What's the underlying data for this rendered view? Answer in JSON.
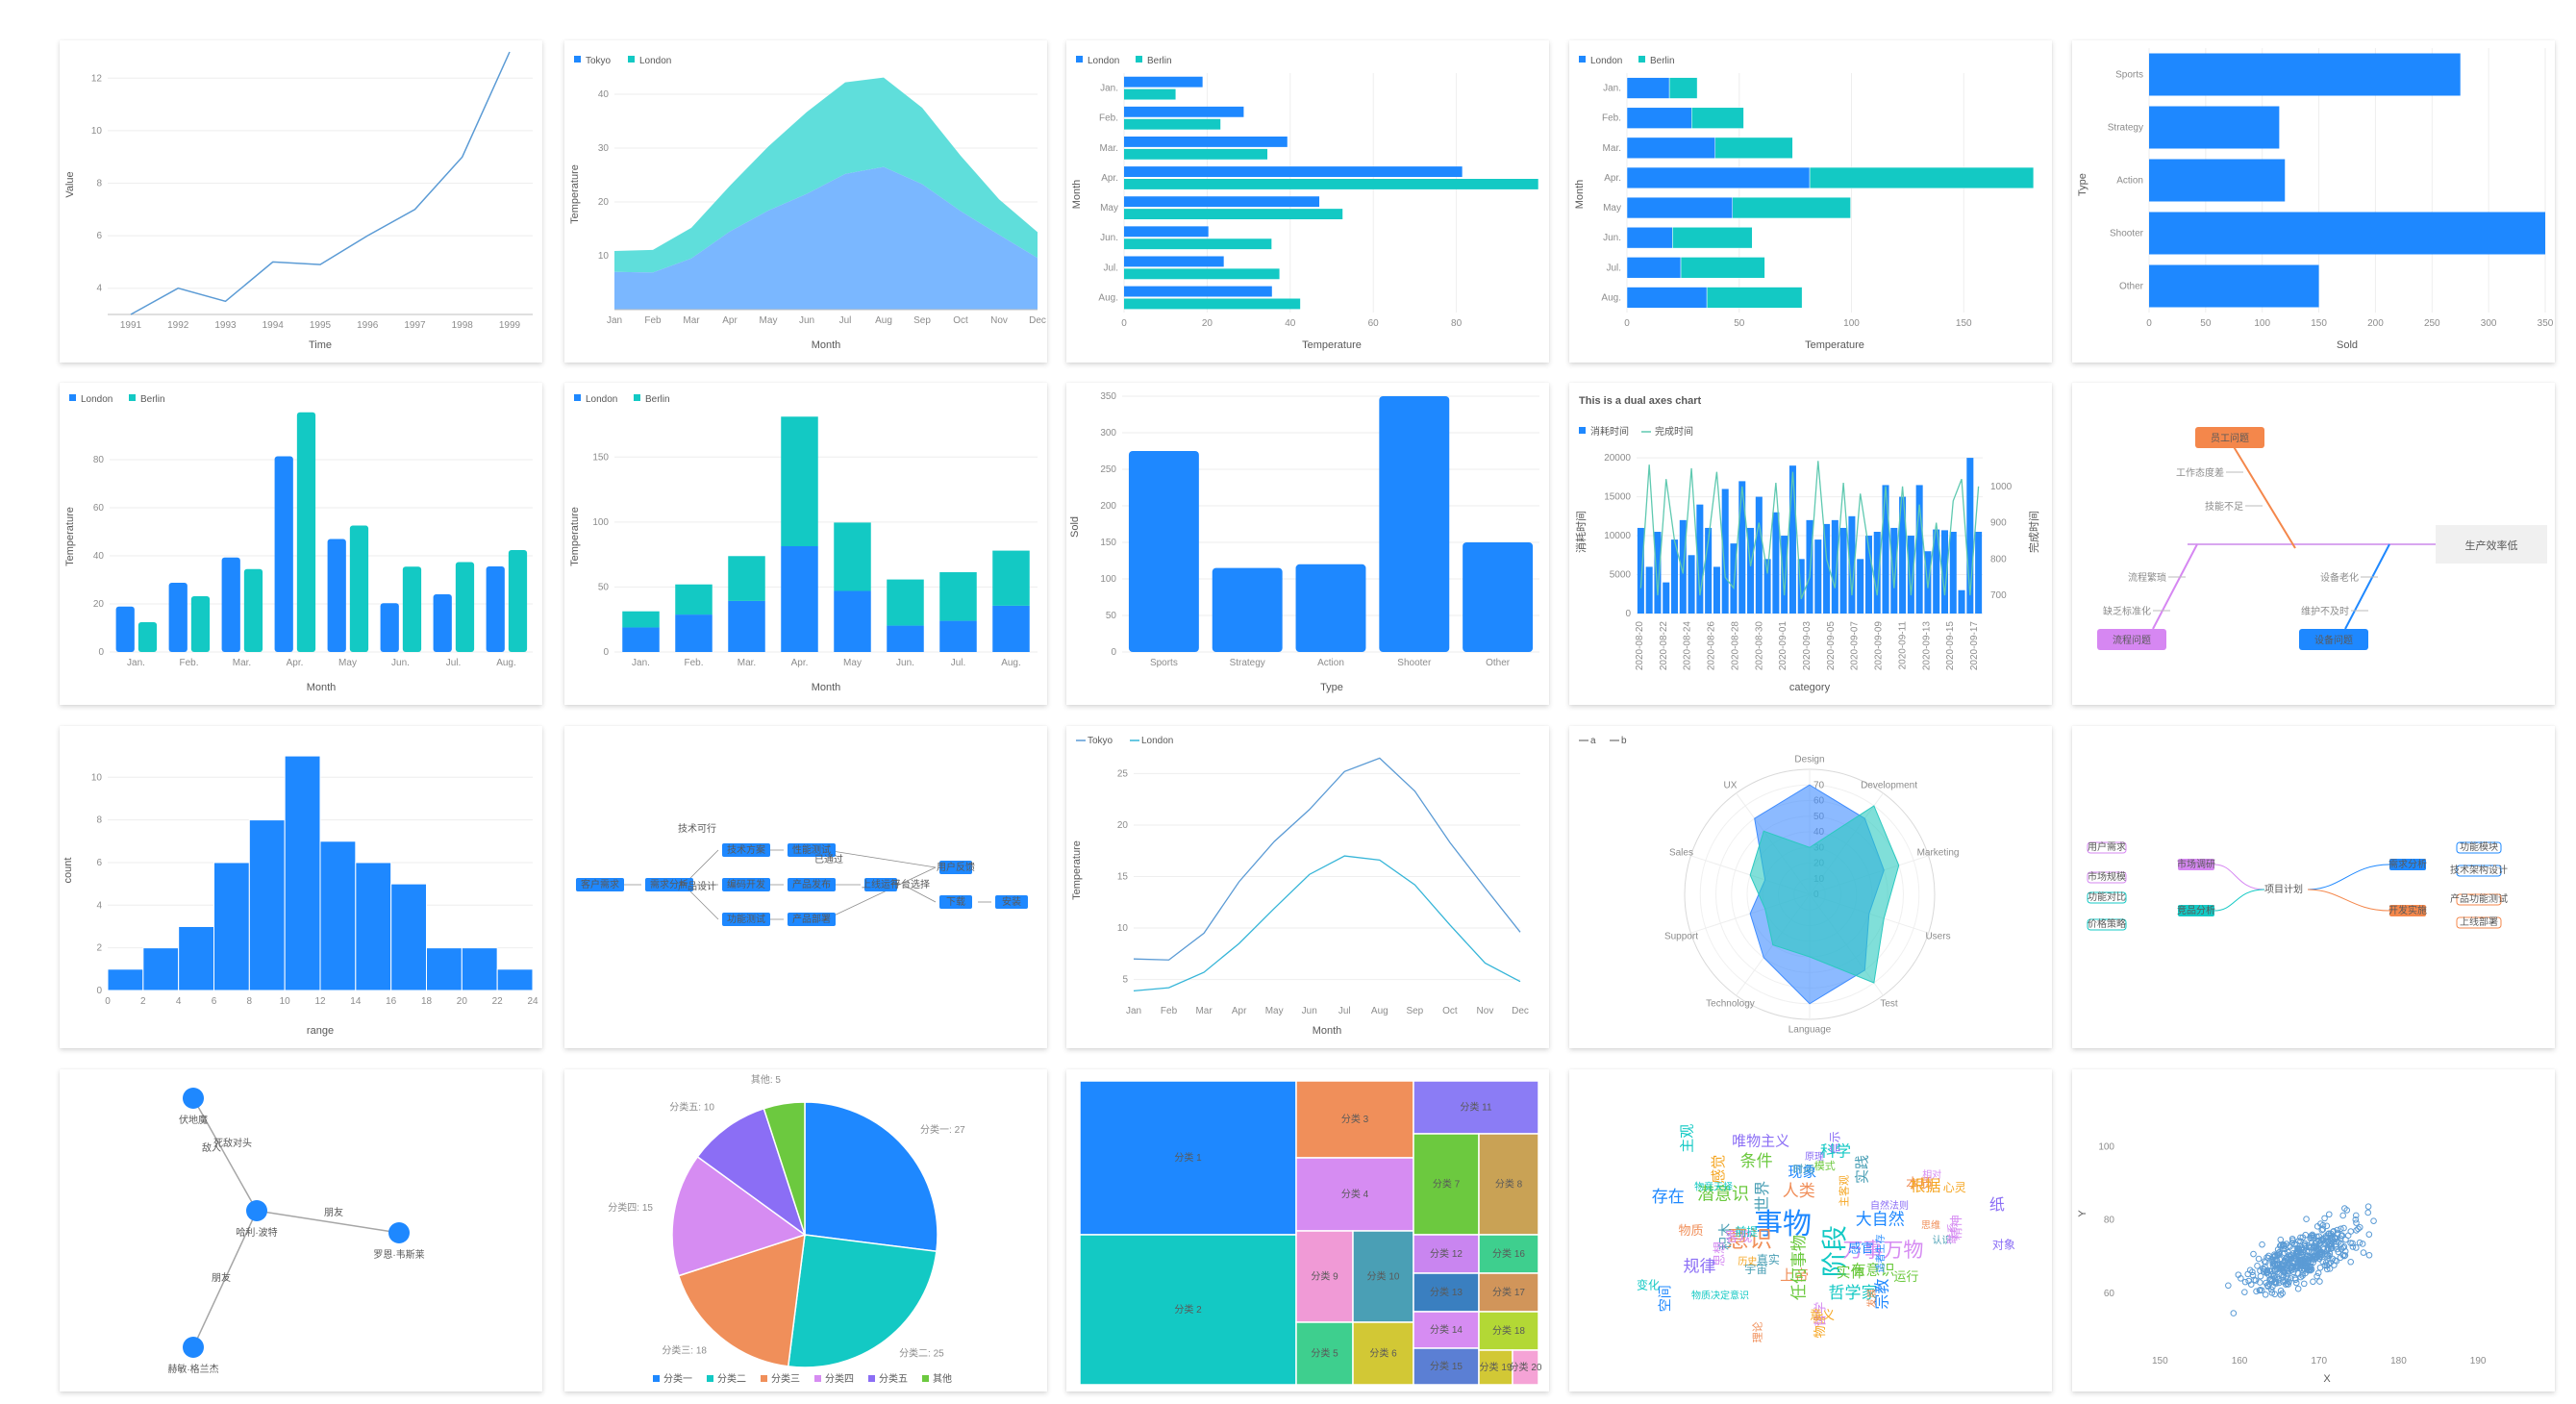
{
  "colors": {
    "blue": "#1e88ff",
    "teal": "#13c9c4",
    "lightblue": "#7ab7ff",
    "lightteal": "#5fdedb"
  },
  "chart_data": [
    {
      "id": "line-time",
      "type": "line",
      "x": [
        1991,
        1992,
        1993,
        1994,
        1995,
        1996,
        1997,
        1998,
        1999
      ],
      "values": [
        3,
        4,
        3.5,
        5,
        4.9,
        6,
        7,
        9,
        13
      ],
      "xlabel": "Time",
      "ylabel": "Value",
      "yticks": [
        4,
        6,
        8,
        10,
        12
      ],
      "ylim": [
        3,
        13
      ]
    },
    {
      "id": "area-temp",
      "type": "area",
      "categories": [
        "Jan",
        "Feb",
        "Mar",
        "Apr",
        "May",
        "Jun",
        "Jul",
        "Aug",
        "Sep",
        "Oct",
        "Nov",
        "Dec"
      ],
      "series": [
        {
          "name": "Tokyo",
          "values": [
            7,
            6.9,
            9.5,
            14.5,
            18.4,
            21.5,
            25.2,
            26.5,
            23.3,
            18.3,
            13.9,
            9.6
          ]
        },
        {
          "name": "London",
          "values": [
            3.9,
            4.2,
            5.7,
            8.5,
            11.9,
            15.2,
            17,
            16.6,
            14.2,
            10.3,
            6.6,
            4.8
          ]
        }
      ],
      "xlabel": "Month",
      "ylabel": "Temperature",
      "yticks": [
        10,
        20,
        30,
        40
      ],
      "ylim": [
        0,
        45
      ]
    },
    {
      "id": "hbar-group",
      "type": "bar",
      "orientation": "horizontal",
      "categories": [
        "Jan.",
        "Feb.",
        "Mar.",
        "Apr.",
        "May",
        "Jun.",
        "Jul.",
        "Aug."
      ],
      "series": [
        {
          "name": "London",
          "values": [
            18.9,
            28.8,
            39.3,
            81.4,
            47,
            20.3,
            24,
            35.6
          ]
        },
        {
          "name": "Berlin",
          "values": [
            12.4,
            23.2,
            34.5,
            99.7,
            52.6,
            35.5,
            37.4,
            42.4
          ]
        }
      ],
      "xlabel": "Temperature",
      "ylabel": "Month",
      "xticks": [
        0,
        20,
        40,
        60,
        80
      ],
      "xlim": [
        0,
        100
      ]
    },
    {
      "id": "hbar-stack",
      "type": "bar",
      "orientation": "horizontal",
      "stacked": true,
      "categories": [
        "Jan.",
        "Feb.",
        "Mar.",
        "Apr.",
        "May",
        "Jun.",
        "Jul.",
        "Aug."
      ],
      "series": [
        {
          "name": "London",
          "values": [
            18.9,
            28.8,
            39.3,
            81.4,
            47,
            20.3,
            24,
            35.6
          ]
        },
        {
          "name": "Berlin",
          "values": [
            12.4,
            23.2,
            34.5,
            99.7,
            52.6,
            35.5,
            37.4,
            42.4
          ]
        }
      ],
      "xlabel": "Temperature",
      "ylabel": "Month",
      "xticks": [
        0,
        50,
        100,
        150
      ],
      "xlim": [
        0,
        185
      ]
    },
    {
      "id": "hbar-games",
      "type": "bar",
      "orientation": "horizontal",
      "categories": [
        "Sports",
        "Strategy",
        "Action",
        "Shooter",
        "Other"
      ],
      "values": [
        275,
        115,
        120,
        350,
        150
      ],
      "xlabel": "Sold",
      "ylabel": "Type",
      "xticks": [
        0,
        50,
        100,
        150,
        200,
        250,
        300,
        350
      ],
      "xlim": [
        0,
        350
      ]
    },
    {
      "id": "vbar-group",
      "type": "bar",
      "categories": [
        "Jan.",
        "Feb.",
        "Mar.",
        "Apr.",
        "May",
        "Jun.",
        "Jul.",
        "Aug."
      ],
      "series": [
        {
          "name": "London",
          "values": [
            18.9,
            28.8,
            39.3,
            81.4,
            47,
            20.3,
            24,
            35.6
          ]
        },
        {
          "name": "Berlin",
          "values": [
            12.4,
            23.2,
            34.5,
            99.7,
            52.6,
            35.5,
            37.4,
            42.4
          ]
        }
      ],
      "xlabel": "Month",
      "ylabel": "Temperature",
      "yticks": [
        0,
        20,
        40,
        60,
        80
      ],
      "ylim": [
        0,
        100
      ]
    },
    {
      "id": "vbar-stack",
      "type": "bar",
      "stacked": true,
      "categories": [
        "Jan.",
        "Feb.",
        "Mar.",
        "Apr.",
        "May",
        "Jun.",
        "Jul.",
        "Aug."
      ],
      "series": [
        {
          "name": "London",
          "values": [
            18.9,
            28.8,
            39.3,
            81.4,
            47,
            20.3,
            24,
            35.6
          ]
        },
        {
          "name": "Berlin",
          "values": [
            12.4,
            23.2,
            34.5,
            99.7,
            52.6,
            35.5,
            37.4,
            42.4
          ]
        }
      ],
      "xlabel": "Month",
      "ylabel": "Temperature",
      "yticks": [
        0,
        50,
        100,
        150
      ],
      "ylim": [
        0,
        185
      ]
    },
    {
      "id": "vbar-games",
      "type": "bar",
      "categories": [
        "Sports",
        "Strategy",
        "Action",
        "Shooter",
        "Other"
      ],
      "values": [
        275,
        115,
        120,
        350,
        150
      ],
      "xlabel": "Type",
      "ylabel": "Sold",
      "yticks": [
        0,
        50,
        100,
        150,
        200,
        250,
        300,
        350
      ],
      "ylim": [
        0,
        350
      ]
    },
    {
      "id": "dual-axes",
      "type": "bar",
      "title": "This is a dual axes chart",
      "series": [
        {
          "name": "消耗时间",
          "values": [
            11000,
            6000,
            10500,
            4000,
            9500,
            12000,
            7500,
            14000,
            11000,
            6000,
            16000,
            9000,
            17000,
            11000,
            15000,
            7000,
            13000,
            10000,
            19000,
            7000,
            12000,
            9500,
            11500,
            12000,
            11000,
            12500,
            7000,
            10000,
            10500,
            16500,
            11000,
            15000,
            10000,
            16500,
            8000,
            10800,
            10700,
            10500,
            3000,
            20000,
            10500
          ]
        },
        {
          "name": "完成时间",
          "values": [
            720,
            1060,
            700,
            1020,
            850,
            760,
            1050,
            700,
            850,
            1040,
            750,
            720,
            1000,
            780,
            900,
            760,
            1010,
            700,
            1040,
            690,
            750,
            1070,
            800,
            720,
            1010,
            700,
            980,
            830,
            700,
            1000,
            720,
            1000,
            700,
            950,
            720,
            900,
            700,
            960,
            1020,
            700,
            1000
          ]
        }
      ],
      "x_tick_labels": [
        "2020-08-20",
        "2020-08-22",
        "2020-08-24",
        "2020-08-26",
        "2020-08-28",
        "2020-08-30",
        "2020-09-01",
        "2020-09-03",
        "2020-09-05",
        "2020-09-07",
        "2020-09-09",
        "2020-09-11",
        "2020-09-13",
        "2020-09-15",
        "2020-09-17"
      ],
      "xlabel": "category",
      "ylabel": "消耗时间",
      "y2label": "完成时间",
      "yticks": [
        0,
        5000,
        10000,
        15000,
        20000
      ],
      "y2ticks": [
        700,
        800,
        900,
        1000
      ],
      "ylim": [
        0,
        21000
      ],
      "y2lim": [
        650,
        1100
      ]
    },
    {
      "id": "histogram",
      "type": "bar",
      "bins": [
        [
          0,
          2
        ],
        [
          2,
          4
        ],
        [
          4,
          6
        ],
        [
          6,
          8
        ],
        [
          8,
          10
        ],
        [
          10,
          12
        ],
        [
          12,
          14
        ],
        [
          14,
          16
        ],
        [
          16,
          18
        ],
        [
          18,
          20
        ],
        [
          20,
          22
        ],
        [
          22,
          24
        ]
      ],
      "values": [
        1,
        2,
        3,
        6,
        8,
        11,
        7,
        6,
        5,
        2,
        2,
        1
      ],
      "xticks": [
        0,
        2,
        4,
        6,
        8,
        10,
        12,
        14,
        16,
        18,
        20,
        22,
        24
      ],
      "xlabel": "range",
      "ylabel": "count",
      "yticks": [
        0,
        2,
        4,
        6,
        8,
        10
      ],
      "ylim": [
        0,
        11.5
      ]
    },
    {
      "id": "line-temp",
      "type": "line",
      "categories": [
        "Jan",
        "Feb",
        "Mar",
        "Apr",
        "May",
        "Jun",
        "Jul",
        "Aug",
        "Sep",
        "Oct",
        "Nov",
        "Dec"
      ],
      "series": [
        {
          "name": "Tokyo",
          "values": [
            7,
            6.9,
            9.5,
            14.5,
            18.4,
            21.5,
            25.2,
            26.5,
            23.3,
            18.3,
            13.9,
            9.6
          ]
        },
        {
          "name": "London",
          "values": [
            3.9,
            4.2,
            5.7,
            8.5,
            11.9,
            15.2,
            17,
            16.6,
            14.2,
            10.3,
            6.6,
            4.8
          ]
        }
      ],
      "xlabel": "Month",
      "ylabel": "Temperature",
      "yticks": [
        5,
        10,
        15,
        20,
        25
      ],
      "ylim": [
        3,
        27
      ]
    },
    {
      "id": "radar",
      "type": "radar",
      "axes": [
        "Design",
        "Development",
        "Marketing",
        "Users",
        "Test",
        "Language",
        "Technology",
        "Support",
        "Sales",
        "UX"
      ],
      "series": [
        {
          "name": "a",
          "values": [
            70,
            60,
            50,
            40,
            60,
            70,
            50,
            40,
            30,
            60
          ]
        },
        {
          "name": "b",
          "values": [
            30,
            70,
            60,
            50,
            70,
            40,
            40,
            30,
            40,
            50
          ]
        }
      ],
      "rticks": [
        0,
        10,
        20,
        30,
        40,
        50,
        60,
        70
      ],
      "rlim": [
        0,
        80
      ]
    },
    {
      "id": "pie",
      "type": "pie",
      "categories": [
        "分类一",
        "分类二",
        "分类三",
        "分类四",
        "分类五",
        "其他"
      ],
      "values": [
        27,
        25,
        18,
        15,
        10,
        5
      ],
      "slice_labels": [
        "分类一: 27",
        "分类二: 25",
        "分类三: 18",
        "分类四: 15",
        "分类五: 10",
        "其他: 5"
      ]
    },
    {
      "id": "treemap",
      "type": "treemap",
      "categories": [
        "分类 1",
        "分类 2",
        "分类 3",
        "分类 4",
        "分类 5",
        "分类 6",
        "分类 7",
        "分类 8",
        "分类 9",
        "分类 10",
        "分类 11",
        "分类 12",
        "分类 13",
        "分类 14",
        "分类 15",
        "分类 16",
        "分类 17",
        "分类 18",
        "分类 19",
        "分类 20"
      ]
    },
    {
      "id": "scatter",
      "type": "scatter",
      "xlabel": "X",
      "ylabel": "Y",
      "xticks": [
        150,
        160,
        170,
        180,
        190
      ],
      "yticks": [
        60,
        80,
        100
      ],
      "xlim": [
        145,
        197
      ],
      "ylim": [
        45,
        118
      ]
    }
  ],
  "diagrams": {
    "fishbone": {
      "head": "生产效率低",
      "tags": [
        {
          "text": "员工问题",
          "color": "#f4874b"
        },
        {
          "text": "流程问题",
          "color": "#d687f2"
        },
        {
          "text": "设备问题",
          "color": "#1e88ff"
        }
      ],
      "causes": [
        "工作态度差",
        "技能不足",
        "流程繁琐",
        "缺乏标准化",
        "设备老化",
        "维护不及时"
      ]
    },
    "mindmap": {
      "root": "项目计划",
      "left_branches": [
        "市场调研",
        "竞品分析"
      ],
      "left_leaves": [
        "用户需求",
        "市场规模",
        "功能对比",
        "价格策略"
      ],
      "right_branches": [
        "需求分析",
        "开发实施"
      ],
      "right_leaves": [
        "功能模块",
        "技术架构设计",
        "产品功能测试",
        "上线部署"
      ]
    },
    "network": {
      "nodes": [
        "伏地魔",
        "哈利·波特",
        "罗恩·韦斯莱",
        "赫敏·格兰杰"
      ],
      "edges": [
        "敌人",
        "死敌对头",
        "朋友",
        "朋友"
      ]
    },
    "flowchart": {
      "nodes": [
        "客户需求",
        "需求分析",
        "技术方案",
        "编码开发",
        "功能测试",
        "性能测试",
        "产品发布",
        "产品部署",
        "用户反馈",
        "下载",
        "安装",
        "上线运行"
      ],
      "edges": [
        "技术可行",
        "产品设计",
        "已通过",
        "平台选择"
      ]
    }
  },
  "wordcloud": {
    "words": [
      "事物",
      "阶段",
      "意识",
      "万事万物",
      "潜意识",
      "启示",
      "物体",
      "积木",
      "大自然",
      "哲学家",
      "上帝",
      "哲学",
      "模式",
      "自然法则",
      "意义",
      "世界",
      "感官",
      "主观",
      "物质",
      "思想",
      "有意识",
      "纸",
      "感觉",
      "宇宙",
      "现象",
      "物质决定意识",
      "思维",
      "客观",
      "任何事物",
      "唯物主义",
      "主客观",
      "认识",
      "宗教",
      "前提",
      "理论",
      "联系",
      "运行",
      "原理",
      "心灵",
      "真实",
      "适者生存",
      "物竞天择",
      "本质",
      "相对",
      "条件",
      "规律",
      "根据",
      "实践",
      "存在",
      "科学",
      "人类",
      "精神",
      "实体",
      "对象",
      "历史",
      "时间",
      "空间",
      "变化",
      "发展"
    ]
  }
}
